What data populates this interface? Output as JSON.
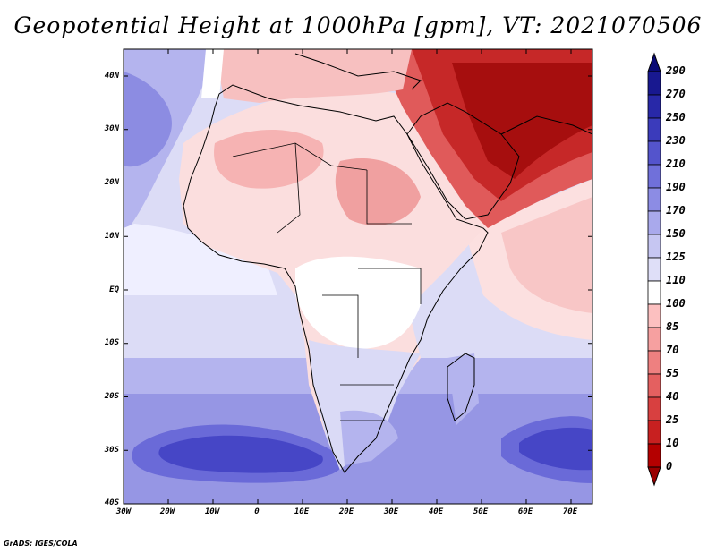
{
  "title": "Geopotential Height at 1000hPa [gpm], VT: 2021070506",
  "footer": "GrADS: IGES/COLA",
  "map": {
    "lat_labels": [
      "40N",
      "30N",
      "20N",
      "10N",
      "EQ",
      "10S",
      "20S",
      "30S",
      "40S"
    ],
    "lon_labels": [
      "30W",
      "20W",
      "10W",
      "0",
      "10E",
      "20E",
      "30E",
      "40E",
      "50E",
      "60E",
      "70E"
    ]
  },
  "colorbar": {
    "labels": [
      "290",
      "270",
      "250",
      "230",
      "210",
      "190",
      "170",
      "150",
      "125",
      "110",
      "100",
      "85",
      "70",
      "55",
      "40",
      "25",
      "10",
      "0"
    ],
    "colors": [
      "#9a0000",
      "#b40000",
      "#c82020",
      "#d84040",
      "#e46060",
      "#ee8080",
      "#f6a0a0",
      "#fcc0c0",
      "#ffffff",
      "#dfdff8",
      "#c6c6f2",
      "#a9a9ec",
      "#8c8ce4",
      "#7070da",
      "#5454cc",
      "#3b3bbb",
      "#2828a8",
      "#181890",
      "#0a0a75"
    ]
  }
}
